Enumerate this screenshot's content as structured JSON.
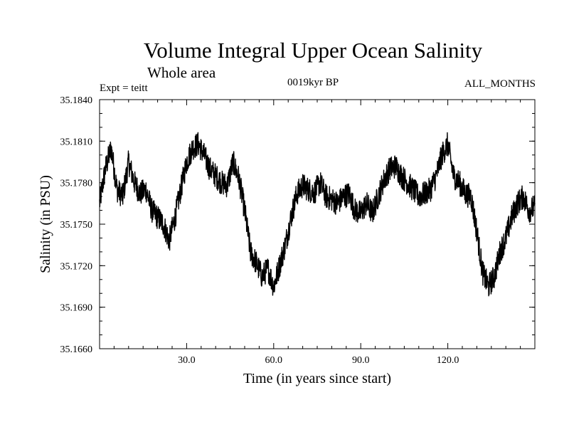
{
  "chart_data": {
    "type": "line",
    "title": "Volume Integral Upper Ocean Salinity",
    "subtitle": "Whole area",
    "left_label": "Expt = teitt",
    "center_label": "0019kyr BP",
    "right_label": "ALL_MONTHS",
    "xlabel": "Time (in years since start)",
    "ylabel": "Salinity (in PSU)",
    "xlim": [
      0,
      150
    ],
    "ylim": [
      35.166,
      35.184
    ],
    "xticks": [
      30,
      60,
      90,
      120
    ],
    "xtick_labels": [
      "30.0",
      "60.0",
      "90.0",
      "120.0"
    ],
    "yticks": [
      35.166,
      35.169,
      35.172,
      35.175,
      35.178,
      35.181,
      35.184
    ],
    "ytick_labels": [
      "35.1660",
      "35.1690",
      "35.1720",
      "35.1750",
      "35.1780",
      "35.1810",
      "35.1840"
    ],
    "series": [
      {
        "name": "Salinity",
        "x": [
          0,
          2,
          4,
          6,
          8,
          10,
          12,
          14,
          16,
          18,
          20,
          22,
          24,
          26,
          28,
          30,
          32,
          34,
          36,
          38,
          40,
          42,
          44,
          46,
          48,
          50,
          52,
          54,
          56,
          58,
          60,
          62,
          64,
          66,
          68,
          70,
          72,
          74,
          76,
          78,
          80,
          82,
          84,
          86,
          88,
          90,
          92,
          94,
          96,
          98,
          100,
          102,
          104,
          106,
          108,
          110,
          112,
          114,
          116,
          118,
          120,
          122,
          124,
          126,
          128,
          130,
          132,
          134,
          136,
          138,
          140,
          142,
          144,
          146,
          148,
          150
        ],
        "values": [
          35.1765,
          35.179,
          35.1805,
          35.1775,
          35.177,
          35.1795,
          35.178,
          35.1772,
          35.1775,
          35.176,
          35.1755,
          35.175,
          35.1738,
          35.1755,
          35.1775,
          35.1795,
          35.1805,
          35.1808,
          35.18,
          35.179,
          35.1785,
          35.178,
          35.1778,
          35.1795,
          35.1783,
          35.176,
          35.173,
          35.1722,
          35.1712,
          35.1718,
          35.1705,
          35.172,
          35.1735,
          35.1755,
          35.1772,
          35.1778,
          35.1775,
          35.1773,
          35.178,
          35.177,
          35.1768,
          35.1765,
          35.177,
          35.1772,
          35.176,
          35.1758,
          35.1765,
          35.1758,
          35.177,
          35.1782,
          35.179,
          35.1792,
          35.1785,
          35.178,
          35.1775,
          35.177,
          35.1772,
          35.1775,
          35.1785,
          35.18,
          35.1808,
          35.1785,
          35.178,
          35.1772,
          35.177,
          35.1745,
          35.1715,
          35.1705,
          35.1712,
          35.173,
          35.174,
          35.1755,
          35.1765,
          35.177,
          35.176,
          35.1762
        ]
      }
    ]
  }
}
